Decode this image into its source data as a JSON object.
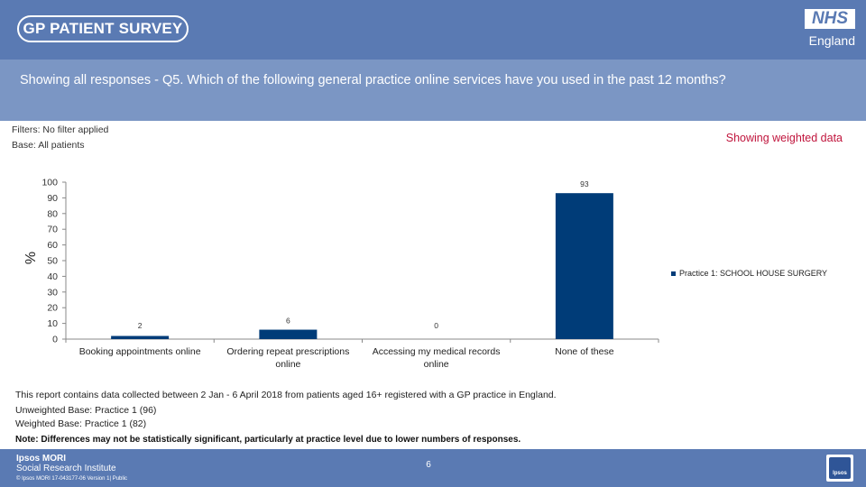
{
  "header": {
    "survey_logo": "GP PATIENT SURVEY",
    "nhs_badge": "NHS",
    "nhs_region": "England",
    "question": "Showing all responses - Q5.  Which of the following general practice online services have you used in the past 12 months?"
  },
  "info": {
    "filters": "Filters: No filter applied",
    "base": "Base: All patients",
    "weighted_note": "Showing weighted data"
  },
  "chart_data": {
    "type": "bar",
    "categories": [
      [
        "Booking appointments online"
      ],
      [
        "Ordering repeat prescriptions",
        "online"
      ],
      [
        "Accessing my medical records",
        "online"
      ],
      [
        "None of these"
      ]
    ],
    "series": [
      {
        "name": "Practice 1: SCHOOL HOUSE SURGERY",
        "values": [
          2,
          6,
          0,
          93
        ],
        "color": "#003c78"
      }
    ],
    "ylabel": "%",
    "ylim": [
      0,
      100
    ],
    "yticks": [
      0,
      10,
      20,
      30,
      40,
      50,
      60,
      70,
      80,
      90,
      100
    ],
    "grid": false,
    "legend": "right"
  },
  "footnotes": {
    "collected": "This report contains data collected between 2 Jan - 6 April 2018 from patients aged 16+ registered with a GP practice in England.",
    "unweighted": "Unweighted Base: Practice 1 (96)",
    "weighted": "Weighted Base: Practice 1 (82)",
    "note": "Note: Differences may not be statistically significant, particularly at practice level due to lower numbers of responses."
  },
  "footer": {
    "ipsos_name": "Ipsos MORI",
    "ipsos_dept": "Social Research Institute",
    "copyright": "© Ipsos MORI       17-043177-06 Version 1| Public",
    "page_number": "6",
    "ipsos_logo": "Ipsos"
  }
}
